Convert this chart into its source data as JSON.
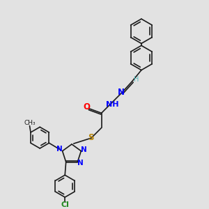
{
  "bg_color": "#e2e2e2",
  "bond_color": "#1a1a1a",
  "line_width": 1.2,
  "fig_size": [
    3.0,
    3.0
  ],
  "dpi": 100,
  "xlim": [
    0,
    10
  ],
  "ylim": [
    0,
    10
  ]
}
